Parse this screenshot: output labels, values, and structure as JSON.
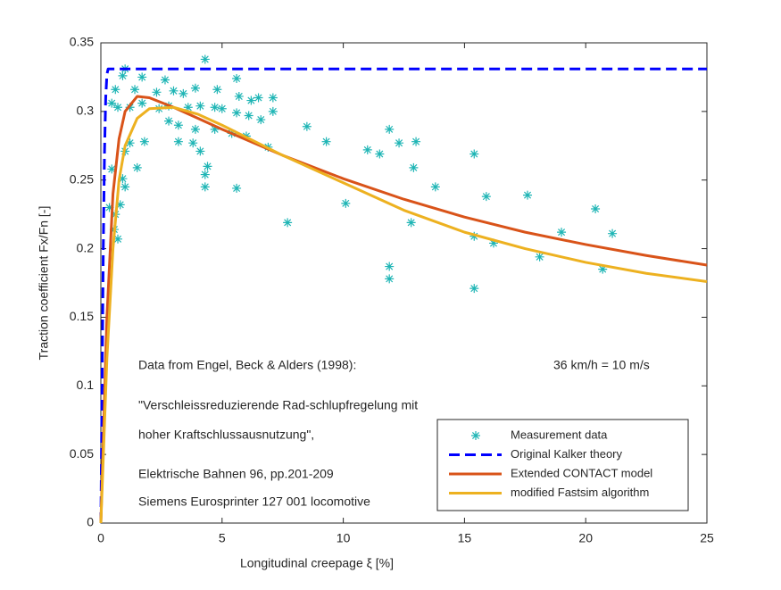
{
  "chart_data": {
    "type": "line",
    "xlabel": "Longitudinal creepage ξ [%]",
    "ylabel": "Traction coefficient Fx/Fn [-]",
    "xlim": [
      0,
      25
    ],
    "xticks": [
      0,
      5,
      10,
      15,
      20,
      25
    ],
    "ylim": [
      0,
      0.35
    ],
    "yticks": [
      0,
      0.05,
      0.1,
      0.15,
      0.2,
      0.25,
      0.3,
      0.35
    ],
    "grid": false,
    "legend_position": "lower right",
    "annotations": [
      "Data from Engel, Beck & Alders (1998):",
      "36 km/h = 10 m/s",
      "\"Verschleissreduzierende Rad-schlupfregelung mit",
      "hoher Kraftschlussausnutzung\",",
      "Elektrische Bahnen 96, pp.201-209",
      "Siemens Eurosprinter 127 001 locomotive"
    ],
    "series": [
      {
        "name": "Measurement data",
        "type": "scatter",
        "color": "#1fb5b5",
        "x": [
          4.3,
          1.0,
          0.9,
          1.7,
          2.65,
          5.6,
          3.9,
          4.8,
          7.1,
          6.5,
          5.7,
          6.2,
          3.4,
          3.0,
          2.3,
          1.4,
          0.6,
          0.45,
          0.7,
          1.2,
          1.7,
          2.4,
          2.8,
          3.6,
          4.1,
          4.7,
          5.0,
          5.6,
          6.1,
          6.6,
          7.1,
          2.8,
          3.2,
          3.9,
          4.7,
          5.4,
          6.0,
          6.9,
          8.5,
          9.3,
          11.0,
          11.5,
          11.9,
          12.3,
          13.0,
          12.9,
          13.8,
          15.4,
          15.9,
          17.6,
          10.1,
          12.8,
          7.7,
          5.6,
          4.3,
          4.4,
          4.3,
          4.1,
          3.8,
          3.2,
          1.8,
          1.5,
          1.2,
          1.0,
          0.9,
          1.0,
          0.6,
          0.7,
          0.8,
          0.55,
          0.45,
          0.35,
          15.4,
          16.2,
          19.0,
          20.4,
          21.1,
          18.1,
          20.7,
          11.9,
          11.9,
          15.4
        ],
        "values": [
          0.338,
          0.331,
          0.326,
          0.325,
          0.323,
          0.324,
          0.317,
          0.316,
          0.31,
          0.31,
          0.311,
          0.308,
          0.313,
          0.315,
          0.314,
          0.316,
          0.316,
          0.306,
          0.303,
          0.303,
          0.306,
          0.302,
          0.304,
          0.303,
          0.304,
          0.303,
          0.302,
          0.299,
          0.297,
          0.294,
          0.3,
          0.293,
          0.29,
          0.287,
          0.287,
          0.284,
          0.282,
          0.274,
          0.289,
          0.278,
          0.272,
          0.269,
          0.287,
          0.277,
          0.278,
          0.259,
          0.245,
          0.269,
          0.238,
          0.239,
          0.233,
          0.219,
          0.219,
          0.244,
          0.245,
          0.26,
          0.254,
          0.271,
          0.277,
          0.278,
          0.278,
          0.259,
          0.277,
          0.271,
          0.251,
          0.245,
          0.225,
          0.207,
          0.232,
          0.214,
          0.258,
          0.23,
          0.209,
          0.204,
          0.212,
          0.229,
          0.211,
          0.194,
          0.185,
          0.187,
          0.178,
          0.171
        ]
      },
      {
        "name": "Original Kalker theory",
        "type": "line",
        "dashed": true,
        "color": "#0000ff",
        "x": [
          0,
          0.05,
          0.1,
          0.15,
          0.2,
          0.25,
          0.3,
          25
        ],
        "values": [
          0,
          0.1,
          0.2,
          0.27,
          0.31,
          0.327,
          0.331,
          0.331
        ]
      },
      {
        "name": "Extended CONTACT model",
        "type": "line",
        "color": "#d95319",
        "x": [
          0,
          0.25,
          0.5,
          0.75,
          1,
          1.5,
          2,
          3,
          4,
          5,
          7.5,
          10,
          12.5,
          15,
          17.5,
          20,
          22.5,
          25
        ],
        "values": [
          0,
          0.15,
          0.24,
          0.28,
          0.3,
          0.311,
          0.31,
          0.303,
          0.295,
          0.287,
          0.268,
          0.251,
          0.236,
          0.223,
          0.212,
          0.203,
          0.195,
          0.188
        ]
      },
      {
        "name": "modified Fastsim algorithm",
        "type": "line",
        "color": "#edb120",
        "x": [
          0,
          0.25,
          0.5,
          0.75,
          1,
          1.5,
          2,
          3,
          4,
          5,
          7.5,
          10,
          12.5,
          15,
          17.5,
          20,
          22.5,
          25
        ],
        "values": [
          0,
          0.12,
          0.2,
          0.25,
          0.275,
          0.295,
          0.302,
          0.303,
          0.298,
          0.29,
          0.268,
          0.248,
          0.228,
          0.212,
          0.2,
          0.19,
          0.182,
          0.176
        ]
      }
    ]
  }
}
